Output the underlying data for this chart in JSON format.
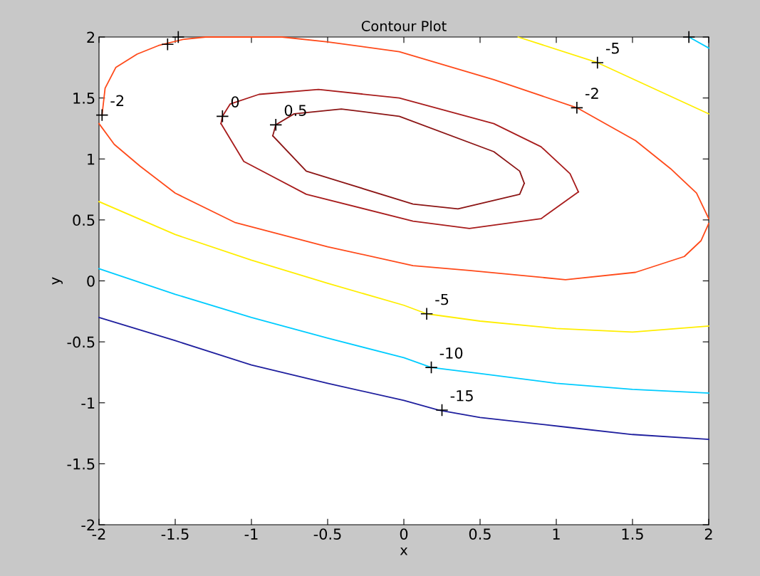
{
  "chart_data": {
    "type": "line",
    "title": "Contour Plot",
    "xlabel": "x",
    "ylabel": "y",
    "xlim": [
      -2,
      2
    ],
    "ylim": [
      -2,
      2
    ],
    "xticks": [
      -2,
      -1.5,
      -1,
      -0.5,
      0,
      0.5,
      1,
      1.5,
      2
    ],
    "yticks": [
      -2,
      -1.5,
      -1,
      -0.5,
      0,
      0.5,
      1,
      1.5,
      2
    ],
    "grid": false,
    "marker": "none",
    "line_style": "solid",
    "series": [
      {
        "color": "#1f1f9e",
        "x": [
          -2,
          -1.5,
          -1,
          -0.5,
          0,
          0.23,
          0.5,
          1.07,
          1.5,
          2
        ],
        "values": [
          -0.3,
          -0.49,
          -0.69,
          -0.84,
          -0.98,
          -1.06,
          -1.12,
          -1.2,
          -1.26,
          -1.3
        ]
      },
      {
        "color": "#00ccff",
        "x": [
          -2,
          -1.5,
          -1,
          -0.5,
          0,
          0.18,
          0.5,
          1,
          1.5,
          2
        ],
        "values": [
          0.1,
          -0.11,
          -0.3,
          -0.47,
          -0.63,
          -0.71,
          -0.76,
          -0.84,
          -0.89,
          -0.92
        ]
      },
      {
        "color": "#00ccff",
        "x": [
          1.87,
          2
        ],
        "values": [
          2,
          1.91
        ]
      },
      {
        "color": "#ffee00",
        "x": [
          -2,
          -1.5,
          -1,
          -0.5,
          0,
          0.15,
          0.5,
          1,
          1.5,
          2
        ],
        "values": [
          0.65,
          0.38,
          0.17,
          -0.02,
          -0.2,
          -0.27,
          -0.33,
          -0.39,
          -0.42,
          -0.37
        ]
      },
      {
        "color": "#ffee00",
        "x": [
          0.75,
          1.27,
          2
        ],
        "values": [
          2,
          1.79,
          1.37
        ]
      },
      {
        "color": "#ff4a1a",
        "x": [
          -1.98,
          -1.96,
          -1.89,
          -1.75,
          -1.61,
          -1.45,
          -1.3,
          -0.8,
          -0.5,
          -0.03,
          0.59,
          1.135,
          1.52,
          1.75,
          1.92,
          2.0
        ],
        "values": [
          1.36,
          1.58,
          1.75,
          1.86,
          1.93,
          1.98,
          2.0,
          2.0,
          1.96,
          1.88,
          1.65,
          1.42,
          1.15,
          0.92,
          0.72,
          0.51
        ]
      },
      {
        "color": "#ff4a1a",
        "x": [
          -2.0,
          -1.9,
          -1.73,
          -1.5,
          -1.11,
          -0.5,
          0.06,
          0.43,
          1.06,
          1.52,
          1.84,
          1.95,
          2.0
        ],
        "values": [
          1.29,
          1.12,
          0.94,
          0.72,
          0.48,
          0.28,
          0.125,
          0.085,
          0.01,
          0.07,
          0.2,
          0.33,
          0.47
        ]
      },
      {
        "color": "#a81c1c",
        "x": [
          -1.2,
          -1.19,
          -1.14,
          -0.95,
          -0.56,
          -0.03,
          0.59,
          0.9,
          1.09,
          1.145
        ],
        "values": [
          1.29,
          1.35,
          1.45,
          1.53,
          1.57,
          1.5,
          1.29,
          1.1,
          0.88,
          0.73
        ]
      },
      {
        "color": "#a81c1c",
        "x": [
          -1.2,
          -1.05,
          -0.64,
          0.06,
          0.43,
          0.9,
          1.145
        ],
        "values": [
          1.29,
          0.98,
          0.71,
          0.49,
          0.43,
          0.51,
          0.73
        ]
      },
      {
        "color": "#8c1515",
        "x": [
          -0.86,
          -0.84,
          -0.72,
          -0.41,
          -0.03,
          0.59,
          0.76,
          0.79
        ],
        "values": [
          1.19,
          1.28,
          1.37,
          1.41,
          1.35,
          1.06,
          0.9,
          0.8
        ]
      },
      {
        "color": "#8c1515",
        "x": [
          -0.86,
          -0.64,
          0.06,
          0.355,
          0.76,
          0.79
        ],
        "values": [
          1.19,
          0.9,
          0.63,
          0.59,
          0.71,
          0.8
        ]
      },
      {
        "type": "scatter",
        "marker": "cross",
        "color": "#000000",
        "x": [
          -1.98,
          -1.19,
          -0.84,
          -1.55,
          -1.48,
          1.135,
          1.27,
          1.87,
          0.15,
          0.18,
          0.25
        ],
        "values": [
          1.36,
          1.35,
          1.28,
          1.94,
          2.0,
          1.42,
          1.79,
          2.0,
          -0.27,
          -0.71,
          -1.06
        ]
      }
    ],
    "annotations": [
      {
        "text": "-2",
        "x": -1.98,
        "y": 1.36
      },
      {
        "text": "0",
        "x": -1.19,
        "y": 1.35
      },
      {
        "text": "0.5",
        "x": -0.84,
        "y": 1.28
      },
      {
        "text": "-2",
        "x": 1.135,
        "y": 1.42
      },
      {
        "text": "-5",
        "x": 1.27,
        "y": 1.79
      },
      {
        "text": "-5",
        "x": 0.15,
        "y": -0.27
      },
      {
        "text": "-10",
        "x": 0.18,
        "y": -0.71
      },
      {
        "text": "-15",
        "x": 0.25,
        "y": -1.06
      }
    ]
  }
}
